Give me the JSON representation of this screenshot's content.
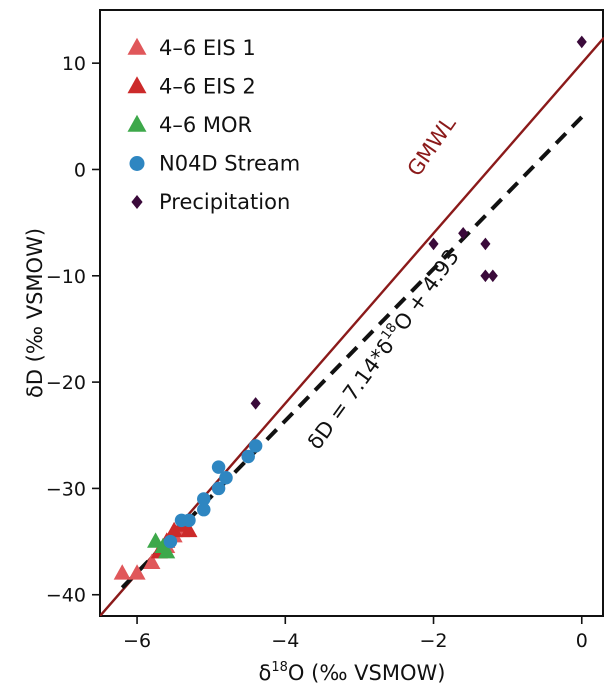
{
  "chart_data": {
    "type": "scatter",
    "xlabel_prefix": "δ",
    "xlabel_sup": "18",
    "xlabel_rest": "O (‰ VSMOW)",
    "ylabel": "δD (‰ VSMOW)",
    "xlim": [
      -6.5,
      0.3
    ],
    "ylim": [
      -42,
      15
    ],
    "xticks": [
      -6,
      -4,
      -2,
      0
    ],
    "yticks": [
      10,
      0,
      -10,
      -20,
      -30,
      -40
    ],
    "grid": false,
    "legend_position": "top-left",
    "series": [
      {
        "name": "4–6 EIS 1",
        "marker": "triangle",
        "color": "#e0575a",
        "points": [
          [
            -6.2,
            -38
          ],
          [
            -6.0,
            -38
          ],
          [
            -5.8,
            -37
          ],
          [
            -5.7,
            -36
          ],
          [
            -5.6,
            -35.5
          ],
          [
            -5.5,
            -34.5
          ],
          [
            -5.4,
            -34
          ]
        ]
      },
      {
        "name": "4–6 EIS 2",
        "marker": "triangle",
        "color": "#cc2a2a",
        "points": [
          [
            -5.7,
            -36
          ],
          [
            -5.6,
            -35
          ],
          [
            -5.5,
            -34
          ],
          [
            -5.4,
            -33.5
          ],
          [
            -5.3,
            -34
          ]
        ]
      },
      {
        "name": "4–6 MOR",
        "marker": "triangle",
        "color": "#3da84a",
        "points": [
          [
            -5.75,
            -35
          ],
          [
            -5.65,
            -35.5
          ],
          [
            -5.6,
            -36
          ]
        ]
      },
      {
        "name": "N04D Stream",
        "marker": "circle",
        "color": "#2e86c1",
        "points": [
          [
            -5.55,
            -35
          ],
          [
            -5.4,
            -33
          ],
          [
            -5.3,
            -33
          ],
          [
            -5.1,
            -32
          ],
          [
            -5.1,
            -31
          ],
          [
            -4.9,
            -30
          ],
          [
            -4.9,
            -28
          ],
          [
            -4.8,
            -29
          ],
          [
            -4.5,
            -27
          ],
          [
            -4.4,
            -26
          ]
        ]
      },
      {
        "name": "Precipitation",
        "marker": "diamond",
        "color": "#3a0a3a",
        "points": [
          [
            0.0,
            12
          ],
          [
            -1.6,
            -6
          ],
          [
            -2.0,
            -7
          ],
          [
            -1.3,
            -7
          ],
          [
            -1.3,
            -10
          ],
          [
            -1.2,
            -10
          ],
          [
            -4.4,
            -22
          ]
        ]
      }
    ],
    "lines": [
      {
        "name": "GMWL",
        "slope": 8,
        "intercept": 10,
        "color": "#8b1a1a",
        "style": "solid"
      },
      {
        "name": "fit",
        "slope": 7.14,
        "intercept": 4.93,
        "color": "#111111",
        "style": "dashed"
      }
    ],
    "annotations": {
      "gmwl_label": "GMWL",
      "fit_eq_prefix": "δD = 7.14*δ",
      "fit_eq_sup": "18",
      "fit_eq_rest": "O + 4.93"
    }
  }
}
